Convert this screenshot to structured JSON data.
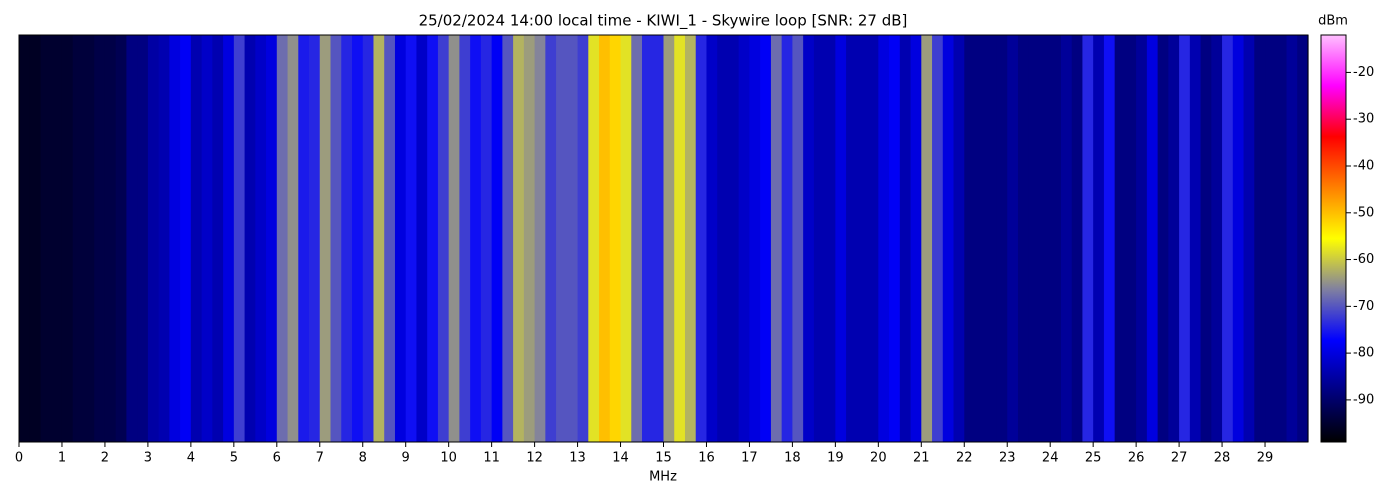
{
  "chart_data": {
    "type": "heatmap",
    "title": "25/02/2024 14:00 local time - KIWI_1 - Skywire loop [SNR: 27 dB]",
    "x_label": "MHz",
    "xlim": [
      0,
      30
    ],
    "xticks": [
      0,
      1,
      2,
      3,
      4,
      5,
      6,
      7,
      8,
      9,
      10,
      11,
      12,
      13,
      14,
      15,
      16,
      17,
      18,
      19,
      20,
      21,
      22,
      23,
      24,
      25,
      26,
      27,
      28,
      29
    ],
    "values": [
      -96,
      -96,
      -95,
      -95,
      -95,
      -94,
      -94,
      -93,
      -93,
      -92,
      -88,
      -88,
      -85,
      -84,
      -80,
      -78,
      -84,
      -82,
      -84,
      -80,
      -72,
      -84,
      -82,
      -80,
      -68,
      -65,
      -75,
      -74,
      -64,
      -70,
      -74,
      -76,
      -74,
      -62,
      -70,
      -80,
      -76,
      -82,
      -76,
      -72,
      -65,
      -72,
      -76,
      -74,
      -78,
      -70,
      -62,
      -64,
      -66,
      -72,
      -70,
      -70,
      -72,
      -58,
      -50,
      -52,
      -58,
      -68,
      -74,
      -74,
      -64,
      -58,
      -62,
      -74,
      -82,
      -84,
      -84,
      -82,
      -80,
      -78,
      -68,
      -74,
      -70,
      -82,
      -84,
      -84,
      -80,
      -84,
      -84,
      -84,
      -80,
      -78,
      -84,
      -80,
      -64,
      -72,
      -80,
      -84,
      -88,
      -88,
      -88,
      -88,
      -86,
      -88,
      -88,
      -88,
      -88,
      -86,
      -88,
      -74,
      -84,
      -76,
      -88,
      -88,
      -86,
      -80,
      -88,
      -86,
      -74,
      -84,
      -88,
      -86,
      -74,
      -80,
      -84,
      -88,
      -88,
      -88,
      -86,
      -88
    ],
    "colorbar": {
      "label": "dBm",
      "lim": [
        -99,
        -12
      ],
      "ticks": [
        -20,
        -30,
        -40,
        -50,
        -60,
        -70,
        -80,
        -90
      ]
    },
    "colormap": [
      "#000000",
      "#000080",
      "#0000ff",
      "#8080a0",
      "#ffff00",
      "#ff8000",
      "#ff0000",
      "#ff00ff",
      "#ffc0ff"
    ]
  }
}
